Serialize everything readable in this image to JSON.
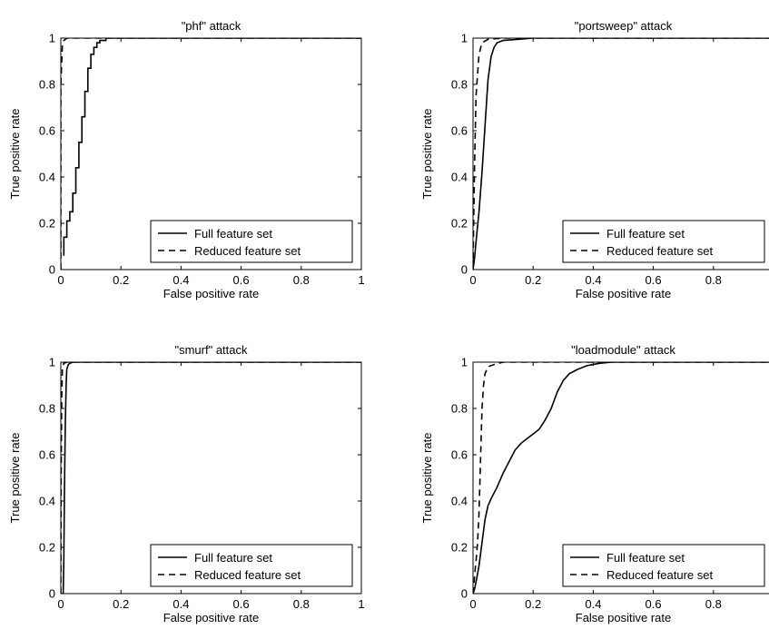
{
  "chart_data": [
    {
      "type": "line",
      "title": "\"phf\" attack",
      "xlabel": "False positive rate",
      "ylabel": "True positive rate",
      "xlim": [
        0,
        1
      ],
      "ylim": [
        0,
        1
      ],
      "xticks": [
        "0",
        "0.2",
        "0.4",
        "0.6",
        "0.8",
        "1"
      ],
      "yticks": [
        "0",
        "0.2",
        "0.4",
        "0.6",
        "0.8",
        "1"
      ],
      "grid": false,
      "legend_position": "bottom-right",
      "series": [
        {
          "name": "Full feature set",
          "style": "solid",
          "x": [
            0.01,
            0.01,
            0.02,
            0.02,
            0.03,
            0.03,
            0.04,
            0.04,
            0.05,
            0.05,
            0.06,
            0.06,
            0.07,
            0.07,
            0.08,
            0.08,
            0.09,
            0.09,
            0.1,
            0.1,
            0.11,
            0.11,
            0.12,
            0.12,
            0.13,
            0.13,
            0.15,
            0.15,
            0.2,
            1.0
          ],
          "y": [
            0.06,
            0.14,
            0.14,
            0.21,
            0.21,
            0.25,
            0.25,
            0.33,
            0.33,
            0.44,
            0.44,
            0.55,
            0.55,
            0.66,
            0.66,
            0.77,
            0.77,
            0.87,
            0.87,
            0.93,
            0.93,
            0.96,
            0.96,
            0.98,
            0.98,
            0.99,
            0.99,
            1.0,
            1.0,
            1.0
          ]
        },
        {
          "name": "Reduced feature set",
          "style": "dashed",
          "x": [
            0.0,
            0.0,
            0.005,
            0.01,
            0.02,
            0.05,
            1.0
          ],
          "y": [
            0.0,
            0.8,
            0.97,
            0.99,
            1.0,
            1.0,
            1.0
          ]
        }
      ]
    },
    {
      "type": "line",
      "title": "\"portsweep\" attack",
      "xlabel": "False positive rate",
      "ylabel": "True positive rate",
      "xlim": [
        0,
        1
      ],
      "ylim": [
        0,
        1
      ],
      "xticks": [
        "0",
        "0.2",
        "0.4",
        "0.6",
        "0.8",
        ""
      ],
      "yticks": [
        "0",
        "0.2",
        "0.4",
        "0.6",
        "0.8",
        "1"
      ],
      "grid": false,
      "legend_position": "bottom-right",
      "series": [
        {
          "name": "Full feature set",
          "style": "solid",
          "x": [
            0.0,
            0.005,
            0.01,
            0.02,
            0.03,
            0.04,
            0.05,
            0.06,
            0.07,
            0.08,
            0.1,
            0.15,
            0.2,
            1.0
          ],
          "y": [
            0.0,
            0.05,
            0.12,
            0.25,
            0.42,
            0.62,
            0.82,
            0.92,
            0.96,
            0.98,
            0.99,
            0.995,
            1.0,
            1.0
          ]
        },
        {
          "name": "Reduced feature set",
          "style": "dashed",
          "x": [
            0.0,
            0.002,
            0.005,
            0.01,
            0.02,
            0.03,
            0.05,
            0.1,
            1.0
          ],
          "y": [
            0.0,
            0.2,
            0.45,
            0.75,
            0.93,
            0.98,
            0.995,
            1.0,
            1.0
          ]
        }
      ]
    },
    {
      "type": "line",
      "title": "\"smurf\" attack",
      "xlabel": "False positive rate",
      "ylabel": "True positive rate",
      "xlim": [
        0,
        1
      ],
      "ylim": [
        0,
        1
      ],
      "xticks": [
        "0",
        "0.2",
        "0.4",
        "0.6",
        "0.8",
        "1"
      ],
      "yticks": [
        "0",
        "0.2",
        "0.4",
        "0.6",
        "0.8",
        "1"
      ],
      "grid": false,
      "legend_position": "bottom-right",
      "series": [
        {
          "name": "Full feature set",
          "style": "solid",
          "x": [
            0.0,
            0.008,
            0.01,
            0.012,
            0.015,
            0.018,
            0.02,
            0.025,
            0.03,
            0.04,
            0.06,
            1.0
          ],
          "y": [
            0.0,
            0.0,
            0.15,
            0.45,
            0.75,
            0.92,
            0.97,
            0.99,
            0.995,
            1.0,
            1.0,
            1.0
          ]
        },
        {
          "name": "Reduced feature set",
          "style": "dashed",
          "x": [
            0.0,
            0.001,
            0.003,
            0.005,
            0.01,
            0.02,
            1.0
          ],
          "y": [
            0.0,
            0.5,
            0.85,
            0.97,
            0.995,
            1.0,
            1.0
          ]
        }
      ]
    },
    {
      "type": "line",
      "title": "\"loadmodule\" attack",
      "xlabel": "False positive rate",
      "ylabel": "True positive rate",
      "xlim": [
        0,
        1
      ],
      "ylim": [
        0,
        1
      ],
      "xticks": [
        "0",
        "0.2",
        "0.4",
        "0.6",
        "0.8",
        ""
      ],
      "yticks": [
        "0",
        "0.2",
        "0.4",
        "0.6",
        "0.8",
        "1"
      ],
      "grid": false,
      "legend_position": "bottom-right",
      "series": [
        {
          "name": "Full feature set",
          "style": "solid",
          "x": [
            0.0,
            0.005,
            0.01,
            0.02,
            0.03,
            0.04,
            0.05,
            0.06,
            0.08,
            0.1,
            0.12,
            0.14,
            0.16,
            0.18,
            0.2,
            0.22,
            0.24,
            0.26,
            0.28,
            0.3,
            0.32,
            0.35,
            0.38,
            0.42,
            0.46,
            0.5,
            1.0
          ],
          "y": [
            0.0,
            0.02,
            0.05,
            0.12,
            0.22,
            0.32,
            0.38,
            0.41,
            0.46,
            0.52,
            0.57,
            0.62,
            0.65,
            0.67,
            0.69,
            0.71,
            0.75,
            0.8,
            0.87,
            0.92,
            0.95,
            0.97,
            0.985,
            0.995,
            1.0,
            1.0,
            1.0
          ]
        },
        {
          "name": "Reduced feature set",
          "style": "dashed",
          "x": [
            0.0,
            0.003,
            0.005,
            0.01,
            0.015,
            0.02,
            0.025,
            0.03,
            0.035,
            0.04,
            0.05,
            0.07,
            0.1,
            1.0
          ],
          "y": [
            0.0,
            0.02,
            0.08,
            0.14,
            0.22,
            0.35,
            0.58,
            0.8,
            0.9,
            0.95,
            0.98,
            0.99,
            1.0,
            1.0
          ]
        }
      ]
    }
  ]
}
